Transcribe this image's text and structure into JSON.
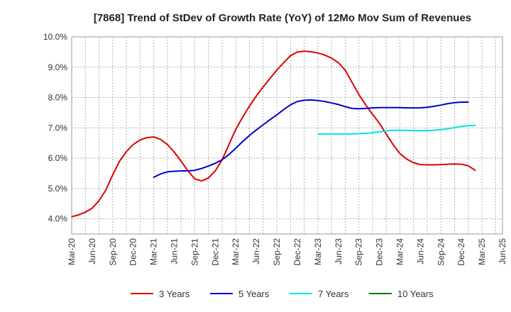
{
  "chart_data": {
    "type": "line",
    "title": "[7868]  Trend of StDev of Growth Rate (YoY) of 12Mo Mov Sum of Revenues",
    "xlabel": "",
    "ylabel": "",
    "ylim": [
      3.5,
      10.0
    ],
    "yticks": [
      4.0,
      5.0,
      6.0,
      7.0,
      8.0,
      9.0,
      10.0
    ],
    "ytick_labels": [
      "4.0%",
      "5.0%",
      "6.0%",
      "7.0%",
      "8.0%",
      "9.0%",
      "10.0%"
    ],
    "x_start": "Mar-20",
    "x_end": "Jun-25",
    "num_months": 63,
    "xtick_labels": [
      "Mar-20",
      "Jun-20",
      "Sep-20",
      "Dec-20",
      "Mar-21",
      "Jun-21",
      "Sep-21",
      "Dec-21",
      "Mar-22",
      "Jun-22",
      "Sep-22",
      "Dec-22",
      "Mar-23",
      "Jun-23",
      "Sep-23",
      "Dec-23",
      "Mar-24",
      "Jun-24",
      "Sep-24",
      "Dec-24",
      "Mar-25",
      "Jun-25"
    ],
    "grid": true,
    "legend_position": "bottom",
    "series": [
      {
        "name": "3 Years",
        "color": "#dd0000",
        "start_month": 0,
        "values": [
          4.07,
          4.13,
          4.22,
          4.35,
          4.6,
          4.95,
          5.45,
          5.9,
          6.22,
          6.45,
          6.6,
          6.68,
          6.7,
          6.62,
          6.45,
          6.2,
          5.9,
          5.58,
          5.32,
          5.25,
          5.35,
          5.58,
          5.95,
          6.45,
          6.95,
          7.35,
          7.72,
          8.05,
          8.35,
          8.63,
          8.9,
          9.15,
          9.38,
          9.5,
          9.53,
          9.51,
          9.47,
          9.4,
          9.3,
          9.15,
          8.9,
          8.5,
          8.1,
          7.75,
          7.45,
          7.15,
          6.8,
          6.45,
          6.15,
          5.97,
          5.85,
          5.79,
          5.78,
          5.78,
          5.79,
          5.8,
          5.81,
          5.8,
          5.75,
          5.6
        ]
      },
      {
        "name": "5 Years",
        "color": "#0000cc",
        "start_month": 12,
        "values": [
          5.37,
          5.48,
          5.55,
          5.57,
          5.58,
          5.58,
          5.6,
          5.66,
          5.74,
          5.83,
          5.95,
          6.12,
          6.33,
          6.55,
          6.75,
          6.93,
          7.1,
          7.27,
          7.43,
          7.6,
          7.76,
          7.87,
          7.91,
          7.92,
          7.9,
          7.87,
          7.82,
          7.77,
          7.7,
          7.64,
          7.63,
          7.64,
          7.66,
          7.67,
          7.67,
          7.67,
          7.67,
          7.66,
          7.66,
          7.66,
          7.68,
          7.71,
          7.75,
          7.8,
          7.83,
          7.85,
          7.85
        ]
      },
      {
        "name": "7 Years",
        "color": "#00e5e5",
        "start_month": 36,
        "values": [
          6.8,
          6.8,
          6.8,
          6.8,
          6.8,
          6.8,
          6.81,
          6.82,
          6.84,
          6.87,
          6.9,
          6.92,
          6.92,
          6.92,
          6.91,
          6.91,
          6.91,
          6.92,
          6.94,
          6.97,
          7.01,
          7.05,
          7.07,
          7.08
        ]
      },
      {
        "name": "10 Years",
        "color": "#007700",
        "start_month": 0,
        "values": []
      }
    ]
  }
}
